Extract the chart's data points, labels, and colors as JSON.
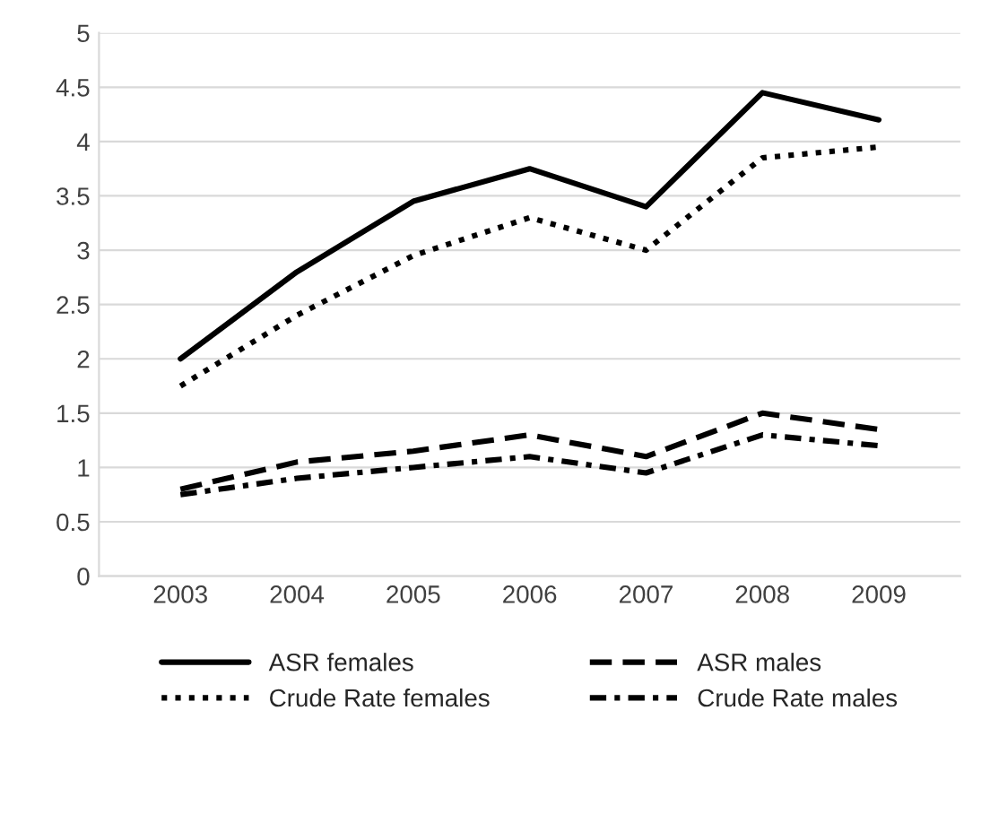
{
  "chart_data": {
    "type": "line",
    "categories": [
      "2003",
      "2004",
      "2005",
      "2006",
      "2007",
      "2008",
      "2009"
    ],
    "series": [
      {
        "name": "ASR females",
        "color": "#000000",
        "line_style": "solid",
        "values": [
          2.0,
          2.8,
          3.45,
          3.75,
          3.4,
          4.45,
          4.2
        ]
      },
      {
        "name": "ASR males",
        "color": "#000000",
        "line_style": "dashed",
        "values": [
          0.8,
          1.05,
          1.15,
          1.3,
          1.1,
          1.5,
          1.35
        ]
      },
      {
        "name": "Crude Rate females",
        "color": "#000000",
        "line_style": "dotted",
        "values": [
          1.75,
          2.4,
          2.95,
          3.3,
          3.0,
          3.85,
          3.95
        ]
      },
      {
        "name": "Crude Rate males",
        "color": "#000000",
        "line_style": "dashdot",
        "values": [
          0.75,
          0.9,
          1.0,
          1.1,
          0.95,
          1.3,
          1.2
        ]
      }
    ],
    "ylim": [
      0,
      5
    ],
    "yticks": [
      0,
      {
        "value": 0.5,
        "label": "0.5"
      },
      1,
      {
        "value": 1.5,
        "label": "1.5"
      },
      2,
      {
        "value": 2.5,
        "label": "2.5"
      },
      3,
      {
        "value": 3.5,
        "label": "3.5"
      },
      4,
      {
        "value": 4.5,
        "label": "4.5"
      },
      5
    ],
    "grid": "y",
    "legend": "bottom",
    "marker": "none"
  }
}
